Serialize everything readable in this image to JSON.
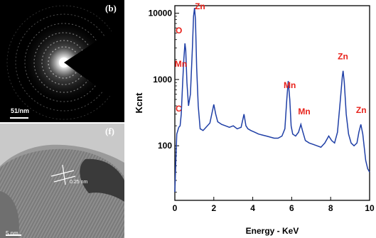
{
  "panels": {
    "saed": {
      "letter": "(b)",
      "scale_label": "51/nm"
    },
    "hrtem": {
      "letter": "(f)",
      "spacing_label": "0.25 nm",
      "scale_label": "5 nm"
    }
  },
  "colors": {
    "series": "#1f3fa6",
    "element_labels": "#e8231c",
    "frame": "#000000"
  },
  "chart_data": {
    "type": "line",
    "title": "",
    "xlabel": "Energy - KeV",
    "ylabel": "Kcnt",
    "xlim": [
      0,
      10
    ],
    "ylim": [
      15,
      13000
    ],
    "yscale": "log",
    "xticks": [
      0,
      2,
      4,
      6,
      8,
      10
    ],
    "yticks": [
      100,
      1000,
      10000
    ],
    "legend": "none",
    "grid": false,
    "series": [
      {
        "x": [
          0.0,
          0.05,
          0.1,
          0.2,
          0.27,
          0.33,
          0.4,
          0.46,
          0.52,
          0.56,
          0.62,
          0.7,
          0.8,
          0.9,
          0.96,
          1.01,
          1.06,
          1.12,
          1.2,
          1.3,
          1.45,
          1.6,
          1.8,
          2.0,
          2.1,
          2.2,
          2.4,
          2.6,
          2.8,
          3.0,
          3.2,
          3.4,
          3.55,
          3.65,
          3.75,
          3.9,
          4.1,
          4.3,
          4.5,
          4.7,
          4.9,
          5.1,
          5.3,
          5.5,
          5.65,
          5.75,
          5.82,
          5.9,
          5.97,
          6.05,
          6.2,
          6.35,
          6.47,
          6.55,
          6.7,
          6.9,
          7.1,
          7.3,
          7.5,
          7.7,
          7.9,
          8.05,
          8.2,
          8.35,
          8.5,
          8.6,
          8.64,
          8.7,
          8.8,
          8.92,
          9.05,
          9.2,
          9.35,
          9.45,
          9.55,
          9.65,
          9.8,
          9.9,
          10.0
        ],
        "y": [
          20,
          60,
          150,
          190,
          200,
          300,
          900,
          2000,
          3500,
          2800,
          900,
          400,
          600,
          3000,
          9000,
          12000,
          8000,
          1500,
          400,
          180,
          170,
          190,
          220,
          420,
          300,
          230,
          210,
          200,
          190,
          200,
          180,
          190,
          300,
          200,
          180,
          170,
          160,
          150,
          145,
          140,
          135,
          130,
          130,
          140,
          180,
          500,
          950,
          500,
          200,
          150,
          140,
          160,
          210,
          170,
          120,
          110,
          105,
          100,
          95,
          110,
          140,
          120,
          110,
          160,
          500,
          1100,
          1350,
          900,
          300,
          150,
          110,
          100,
          110,
          160,
          210,
          150,
          60,
          45,
          40
        ]
      }
    ],
    "annotations": [
      {
        "text": "O",
        "x": 0.5
      },
      {
        "text": "Mn",
        "x": 0.6
      },
      {
        "text": "Zn",
        "x": 1.0
      },
      {
        "text": "C",
        "x": 0.27
      },
      {
        "text": "Mn",
        "x": 5.9
      },
      {
        "text": "Mn",
        "x": 6.5
      },
      {
        "text": "Zn",
        "x": 8.63
      },
      {
        "text": "Zn",
        "x": 9.57
      }
    ]
  }
}
